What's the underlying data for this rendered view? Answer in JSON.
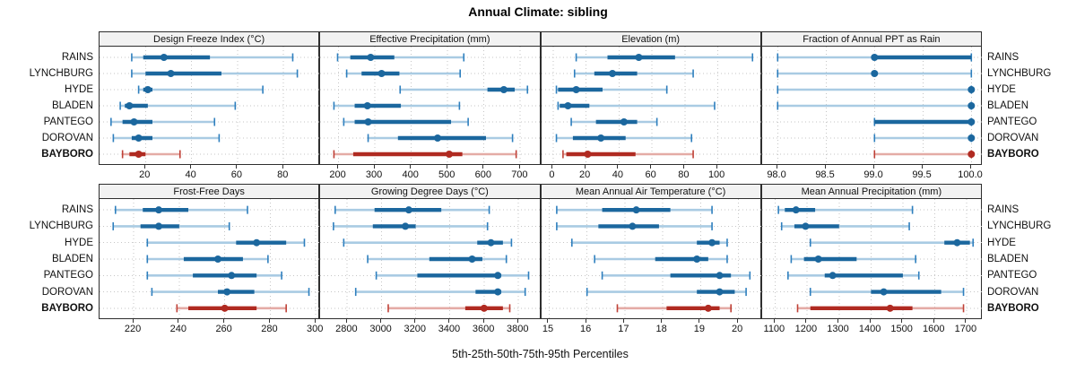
{
  "colors": {
    "series_blue": {
      "dark": "#1b679e",
      "mid": "#2e7fbe",
      "light": "#a9cbe3"
    },
    "highlight_red": {
      "dark": "#b02a21",
      "mid": "#bf4036",
      "light": "#e4aba6"
    },
    "grid": "#c6c6c6",
    "panel_border": "#2e2e2e",
    "strip_bg": "#f2f2f2",
    "text": "#111111"
  },
  "chart_data": {
    "type": "percentile-range-dotplot",
    "title": "Annual Climate: sibling",
    "xlabel": "5th-25th-50th-75th-95th Percentiles",
    "percentiles": [
      "5th",
      "25th",
      "50th",
      "75th",
      "95th"
    ],
    "series_labels": [
      "RAINS",
      "LYNCHBURG",
      "HYDE",
      "BLADEN",
      "PANTEGO",
      "DOROVAN",
      "BAYBORO"
    ],
    "highlighted_series": "BAYBORO",
    "legend_position": "none",
    "grid": true,
    "panels": [
      {
        "title": "Design Freeze Index (°C)",
        "row": 0,
        "col": 0,
        "xlim": [
          0,
          96
        ],
        "ticks": [
          20,
          40,
          60,
          80
        ],
        "tick_labels": [
          "20",
          "40",
          "60",
          "80"
        ],
        "values": [
          [
            14,
            19,
            28,
            48,
            84
          ],
          [
            14,
            20,
            31,
            53,
            86
          ],
          [
            17,
            19,
            21,
            23,
            71
          ],
          [
            9,
            11,
            13,
            21,
            59
          ],
          [
            5,
            10,
            15,
            23,
            50
          ],
          [
            6,
            14,
            17,
            23,
            52
          ],
          [
            10,
            13,
            17,
            20,
            35
          ]
        ]
      },
      {
        "title": "Effective Precipitation (mm)",
        "row": 0,
        "col": 1,
        "xlim": [
          150,
          757
        ],
        "ticks": [
          200,
          300,
          400,
          500,
          600,
          700
        ],
        "tick_labels": [
          "200",
          "300",
          "400",
          "500",
          "600",
          "700"
        ],
        "values": [
          [
            198,
            233,
            289,
            354,
            545
          ],
          [
            223,
            264,
            319,
            368,
            535
          ],
          [
            370,
            610,
            655,
            685,
            720
          ],
          [
            188,
            245,
            280,
            372,
            533
          ],
          [
            215,
            245,
            282,
            510,
            557
          ],
          [
            282,
            364,
            473,
            606,
            679
          ],
          [
            188,
            241,
            505,
            541,
            689
          ]
        ]
      },
      {
        "title": "Elevation (m)",
        "row": 0,
        "col": 2,
        "xlim": [
          -7,
          127
        ],
        "ticks": [
          0,
          20,
          40,
          60,
          80,
          100
        ],
        "tick_labels": [
          "0",
          "20",
          "40",
          "60",
          "80",
          "100"
        ],
        "values": [
          [
            14,
            33,
            52,
            74,
            121
          ],
          [
            13,
            25,
            36,
            51,
            85
          ],
          [
            2,
            3,
            14,
            30,
            69
          ],
          [
            3,
            4,
            9,
            22,
            98
          ],
          [
            11,
            26,
            43,
            51,
            63
          ],
          [
            2,
            12,
            29,
            44,
            84
          ],
          [
            6,
            8,
            21,
            50,
            85
          ]
        ]
      },
      {
        "title": "Fraction of Annual PPT as Rain",
        "row": 0,
        "col": 3,
        "xlim": [
          97.84,
          100.12
        ],
        "ticks": [
          98.0,
          98.5,
          99.0,
          99.5,
          100.0
        ],
        "tick_labels": [
          "98.0",
          "98.5",
          "99.0",
          "99.5",
          "100.0"
        ],
        "values": [
          [
            98,
            99,
            99,
            100,
            100
          ],
          [
            98,
            99,
            99,
            99,
            100
          ],
          [
            98,
            100,
            100,
            100,
            100
          ],
          [
            98,
            100,
            100,
            100,
            100
          ],
          [
            99,
            99,
            100,
            100,
            100
          ],
          [
            99,
            100,
            100,
            100,
            100
          ],
          [
            99,
            100,
            100,
            100,
            100
          ]
        ]
      },
      {
        "title": "Frost-Free Days",
        "row": 1,
        "col": 0,
        "xlim": [
          205,
          302
        ],
        "ticks": [
          220,
          240,
          260,
          280,
          300
        ],
        "tick_labels": [
          "220",
          "240",
          "260",
          "280",
          "300"
        ],
        "values": [
          [
            212,
            224,
            231,
            244,
            270
          ],
          [
            211,
            223,
            231,
            240,
            262
          ],
          [
            226,
            265,
            274,
            287,
            295
          ],
          [
            226,
            242,
            257,
            268,
            279
          ],
          [
            226,
            246,
            263,
            274,
            285
          ],
          [
            228,
            257,
            261,
            273,
            297
          ],
          [
            239,
            244,
            260,
            274,
            287
          ]
        ]
      },
      {
        "title": "Growing Degree Days (°C)",
        "row": 1,
        "col": 1,
        "xlim": [
          2642,
          3932
        ],
        "ticks": [
          2800,
          3000,
          3200,
          3400,
          3600,
          3800
        ],
        "tick_labels": [
          "2800",
          "3000",
          "3200",
          "3400",
          "3600",
          "3800"
        ],
        "values": [
          [
            2730,
            2960,
            3160,
            3350,
            3630
          ],
          [
            2720,
            2950,
            3140,
            3200,
            3620
          ],
          [
            2780,
            3560,
            3640,
            3710,
            3760
          ],
          [
            2920,
            3280,
            3530,
            3590,
            3730
          ],
          [
            2970,
            3210,
            3680,
            3700,
            3860
          ],
          [
            2850,
            3550,
            3680,
            3700,
            3840
          ],
          [
            3040,
            3490,
            3600,
            3710,
            3750
          ]
        ]
      },
      {
        "title": "Mean Annual Air Temperature (°C)",
        "row": 1,
        "col": 2,
        "xlim": [
          14.8,
          20.63
        ],
        "ticks": [
          15,
          16,
          17,
          18,
          19,
          20
        ],
        "tick_labels": [
          "15",
          "16",
          "17",
          "18",
          "19",
          "20"
        ],
        "values": [
          [
            15.2,
            16.4,
            17.3,
            18.2,
            19.3
          ],
          [
            15.2,
            16.3,
            17.2,
            17.9,
            19.3
          ],
          [
            15.6,
            18.9,
            19.3,
            19.5,
            19.7
          ],
          [
            16.2,
            17.8,
            18.9,
            19.2,
            19.7
          ],
          [
            16.4,
            18.2,
            19.5,
            19.8,
            20.3
          ],
          [
            16.0,
            18.9,
            19.5,
            19.9,
            20.2
          ],
          [
            16.8,
            18.1,
            19.2,
            19.5,
            19.8
          ]
        ]
      },
      {
        "title": "Mean Annual Precipitation (mm)",
        "row": 1,
        "col": 3,
        "xlim": [
          1059,
          1751
        ],
        "ticks": [
          1100,
          1200,
          1300,
          1400,
          1500,
          1600,
          1700
        ],
        "tick_labels": [
          "1100",
          "1200",
          "1300",
          "1400",
          "1500",
          "1600",
          "1700"
        ],
        "values": [
          [
            1110,
            1130,
            1165,
            1225,
            1530
          ],
          [
            1120,
            1160,
            1195,
            1300,
            1520
          ],
          [
            1210,
            1630,
            1670,
            1710,
            1720
          ],
          [
            1150,
            1190,
            1235,
            1355,
            1540
          ],
          [
            1140,
            1255,
            1280,
            1500,
            1550
          ],
          [
            1210,
            1400,
            1440,
            1620,
            1690
          ],
          [
            1170,
            1210,
            1460,
            1530,
            1690
          ]
        ]
      }
    ]
  }
}
